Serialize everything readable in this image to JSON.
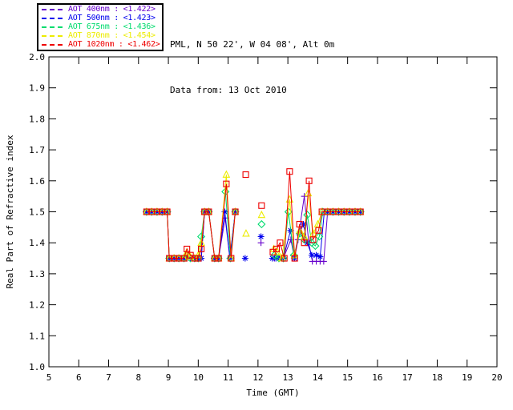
{
  "header": {
    "line1": "PML, N 50 22', W 04 08', Alt 0m",
    "line2": "Data from: 13 Oct 2010"
  },
  "legend": {
    "items": [
      {
        "label": "AOT  400nm : <1.422>",
        "color": "#6600CC",
        "marker": "plus"
      },
      {
        "label": "AOT  500nm : <1.423>",
        "color": "#0000EE",
        "marker": "asterisk"
      },
      {
        "label": "AOT  675nm : <1.436>",
        "color": "#00DC6E",
        "marker": "diamond"
      },
      {
        "label": "AOT  870nm : <1.454>",
        "color": "#ECEC00",
        "marker": "triangle"
      },
      {
        "label": "AOT 1020nm : <1.462>",
        "color": "#EE0000",
        "marker": "square"
      }
    ]
  },
  "chart_data": {
    "type": "line",
    "title": "",
    "xlabel": "Time (GMT)",
    "ylabel": "Real Part of Refractive index",
    "xlim": [
      5,
      20
    ],
    "ylim": [
      1.0,
      2.0
    ],
    "xticks": [
      5,
      6,
      7,
      8,
      9,
      10,
      11,
      12,
      13,
      14,
      15,
      16,
      17,
      18,
      19,
      20
    ],
    "yticks": [
      1.0,
      1.1,
      1.2,
      1.3,
      1.4,
      1.5,
      1.6,
      1.7,
      1.8,
      1.9,
      2.0
    ],
    "grid": false,
    "legend_position": "top-left",
    "frame_color": "#000000",
    "series": [
      {
        "name": "AOT 400nm",
        "mean": 1.422,
        "color": "#6600CC",
        "marker": "plus",
        "segments": [
          [
            [
              8.27,
              1.5
            ],
            [
              8.44,
              1.5
            ],
            [
              8.62,
              1.5
            ],
            [
              8.79,
              1.5
            ],
            [
              8.96,
              1.5
            ],
            [
              9.03,
              1.35
            ],
            [
              9.19,
              1.35
            ],
            [
              9.35,
              1.35
            ],
            [
              9.52,
              1.35
            ],
            [
              9.62,
              1.35
            ],
            [
              9.74,
              1.35
            ],
            [
              9.88,
              1.35
            ],
            [
              10.0,
              1.35
            ],
            [
              10.1,
              1.35
            ],
            [
              10.21,
              1.5
            ],
            [
              10.35,
              1.5
            ],
            [
              10.55,
              1.35
            ],
            [
              10.68,
              1.35
            ],
            [
              10.9,
              1.48
            ],
            [
              11.06,
              1.35
            ],
            [
              11.24,
              1.5
            ]
          ],
          [
            [
              12.1,
              1.4
            ]
          ],
          [
            [
              12.55,
              1.35
            ],
            [
              12.7,
              1.35
            ],
            [
              12.85,
              1.35
            ],
            [
              13.1,
              1.41
            ],
            [
              13.22,
              1.35
            ],
            [
              13.34,
              1.41
            ],
            [
              13.55,
              1.55
            ],
            [
              13.7,
              1.4
            ],
            [
              13.82,
              1.34
            ],
            [
              13.95,
              1.34
            ],
            [
              14.08,
              1.34
            ],
            [
              14.2,
              1.34
            ],
            [
              14.33,
              1.5
            ],
            [
              14.51,
              1.5
            ],
            [
              14.7,
              1.5
            ],
            [
              14.88,
              1.5
            ],
            [
              15.06,
              1.5
            ],
            [
              15.25,
              1.5
            ],
            [
              15.43,
              1.5
            ]
          ]
        ]
      },
      {
        "name": "AOT 500nm",
        "mean": 1.423,
        "color": "#0000EE",
        "marker": "asterisk",
        "segments": [
          [
            [
              8.27,
              1.5
            ],
            [
              8.44,
              1.5
            ],
            [
              8.62,
              1.5
            ],
            [
              8.79,
              1.5
            ],
            [
              8.96,
              1.5
            ],
            [
              9.03,
              1.35
            ],
            [
              9.19,
              1.35
            ],
            [
              9.35,
              1.35
            ],
            [
              9.52,
              1.35
            ],
            [
              9.62,
              1.35
            ],
            [
              9.74,
              1.35
            ],
            [
              9.88,
              1.35
            ],
            [
              10.0,
              1.35
            ],
            [
              10.1,
              1.35
            ],
            [
              10.21,
              1.5
            ],
            [
              10.35,
              1.5
            ],
            [
              10.55,
              1.35
            ],
            [
              10.68,
              1.35
            ],
            [
              10.89,
              1.5
            ],
            [
              11.06,
              1.35
            ],
            [
              11.24,
              1.5
            ]
          ],
          [
            [
              11.57,
              1.35
            ]
          ],
          [
            [
              12.1,
              1.42
            ]
          ],
          [
            [
              12.48,
              1.35
            ],
            [
              12.6,
              1.35
            ],
            [
              12.72,
              1.35
            ],
            [
              12.85,
              1.35
            ],
            [
              13.09,
              1.44
            ],
            [
              13.22,
              1.35
            ],
            [
              13.38,
              1.43
            ],
            [
              13.52,
              1.46
            ],
            [
              13.65,
              1.4
            ],
            [
              13.8,
              1.36
            ],
            [
              13.95,
              1.36
            ],
            [
              14.08,
              1.355
            ],
            [
              14.22,
              1.5
            ],
            [
              14.33,
              1.5
            ],
            [
              14.51,
              1.5
            ],
            [
              14.7,
              1.5
            ],
            [
              14.88,
              1.5
            ],
            [
              15.06,
              1.5
            ],
            [
              15.25,
              1.5
            ],
            [
              15.43,
              1.5
            ]
          ]
        ]
      },
      {
        "name": "AOT 675nm",
        "mean": 1.436,
        "color": "#00DC6E",
        "marker": "diamond",
        "segments": [
          [
            [
              8.27,
              1.5
            ],
            [
              8.44,
              1.5
            ],
            [
              8.62,
              1.5
            ],
            [
              8.79,
              1.5
            ],
            [
              8.96,
              1.5
            ],
            [
              9.03,
              1.35
            ],
            [
              9.19,
              1.35
            ],
            [
              9.35,
              1.35
            ],
            [
              9.52,
              1.35
            ],
            [
              9.62,
              1.36
            ],
            [
              9.74,
              1.35
            ],
            [
              9.88,
              1.35
            ],
            [
              10.0,
              1.35
            ],
            [
              10.1,
              1.42
            ],
            [
              10.21,
              1.5
            ],
            [
              10.35,
              1.5
            ],
            [
              10.55,
              1.35
            ],
            [
              10.68,
              1.35
            ],
            [
              10.91,
              1.565
            ],
            [
              11.08,
              1.35
            ],
            [
              11.24,
              1.5
            ]
          ],
          [
            [
              12.12,
              1.46
            ]
          ],
          [
            [
              12.55,
              1.36
            ],
            [
              12.7,
              1.35
            ],
            [
              12.85,
              1.35
            ],
            [
              13.02,
              1.5
            ],
            [
              13.2,
              1.36
            ],
            [
              13.4,
              1.43
            ],
            [
              13.55,
              1.41
            ],
            [
              13.65,
              1.49
            ],
            [
              13.8,
              1.4
            ],
            [
              13.92,
              1.39
            ],
            [
              14.05,
              1.42
            ],
            [
              14.17,
              1.5
            ],
            [
              14.33,
              1.5
            ],
            [
              14.51,
              1.5
            ],
            [
              14.7,
              1.5
            ],
            [
              14.88,
              1.5
            ],
            [
              15.06,
              1.5
            ],
            [
              15.25,
              1.5
            ],
            [
              15.43,
              1.5
            ]
          ]
        ]
      },
      {
        "name": "AOT 870nm",
        "mean": 1.454,
        "color": "#ECEC00",
        "marker": "triangle",
        "segments": [
          [
            [
              8.27,
              1.5
            ],
            [
              8.44,
              1.5
            ],
            [
              8.62,
              1.5
            ],
            [
              8.79,
              1.5
            ],
            [
              8.96,
              1.5
            ],
            [
              9.03,
              1.35
            ],
            [
              9.19,
              1.35
            ],
            [
              9.35,
              1.35
            ],
            [
              9.52,
              1.35
            ],
            [
              9.62,
              1.37
            ],
            [
              9.74,
              1.355
            ],
            [
              9.88,
              1.35
            ],
            [
              10.0,
              1.36
            ],
            [
              10.1,
              1.4
            ],
            [
              10.21,
              1.5
            ],
            [
              10.35,
              1.5
            ],
            [
              10.55,
              1.35
            ],
            [
              10.68,
              1.35
            ],
            [
              10.94,
              1.62
            ],
            [
              11.1,
              1.35
            ],
            [
              11.24,
              1.5
            ]
          ],
          [
            [
              11.6,
              1.43
            ]
          ],
          [
            [
              12.12,
              1.49
            ]
          ],
          [
            [
              12.53,
              1.38
            ],
            [
              12.65,
              1.37
            ],
            [
              12.8,
              1.35
            ],
            [
              13.06,
              1.54
            ],
            [
              13.22,
              1.36
            ],
            [
              13.4,
              1.44
            ],
            [
              13.55,
              1.42
            ],
            [
              13.68,
              1.56
            ],
            [
              13.85,
              1.43
            ],
            [
              14.0,
              1.46
            ],
            [
              14.14,
              1.5
            ],
            [
              14.33,
              1.5
            ],
            [
              14.51,
              1.5
            ],
            [
              14.7,
              1.5
            ],
            [
              14.88,
              1.5
            ],
            [
              15.06,
              1.5
            ],
            [
              15.25,
              1.5
            ],
            [
              15.43,
              1.5
            ]
          ]
        ]
      },
      {
        "name": "AOT 1020nm",
        "mean": 1.462,
        "color": "#EE0000",
        "marker": "square",
        "segments": [
          [
            [
              8.27,
              1.5
            ],
            [
              8.44,
              1.5
            ],
            [
              8.62,
              1.5
            ],
            [
              8.79,
              1.5
            ],
            [
              8.96,
              1.5
            ],
            [
              9.03,
              1.35
            ],
            [
              9.19,
              1.35
            ],
            [
              9.35,
              1.35
            ],
            [
              9.52,
              1.35
            ],
            [
              9.62,
              1.38
            ],
            [
              9.74,
              1.36
            ],
            [
              9.88,
              1.35
            ],
            [
              10.0,
              1.35
            ],
            [
              10.1,
              1.38
            ],
            [
              10.21,
              1.5
            ],
            [
              10.35,
              1.5
            ],
            [
              10.55,
              1.35
            ],
            [
              10.68,
              1.35
            ],
            [
              10.94,
              1.59
            ],
            [
              11.1,
              1.35
            ],
            [
              11.24,
              1.5
            ]
          ],
          [
            [
              11.59,
              1.62
            ]
          ],
          [
            [
              12.12,
              1.52
            ]
          ],
          [
            [
              12.5,
              1.37
            ],
            [
              12.62,
              1.38
            ],
            [
              12.74,
              1.4
            ],
            [
              12.88,
              1.35
            ],
            [
              13.06,
              1.63
            ],
            [
              13.23,
              1.35
            ],
            [
              13.39,
              1.46
            ],
            [
              13.55,
              1.4
            ],
            [
              13.71,
              1.6
            ],
            [
              13.84,
              1.41
            ],
            [
              14.03,
              1.44
            ],
            [
              14.14,
              1.5
            ],
            [
              14.33,
              1.5
            ],
            [
              14.51,
              1.5
            ],
            [
              14.7,
              1.5
            ],
            [
              14.88,
              1.5
            ],
            [
              15.06,
              1.5
            ],
            [
              15.25,
              1.5
            ],
            [
              15.43,
              1.5
            ]
          ]
        ]
      }
    ]
  }
}
